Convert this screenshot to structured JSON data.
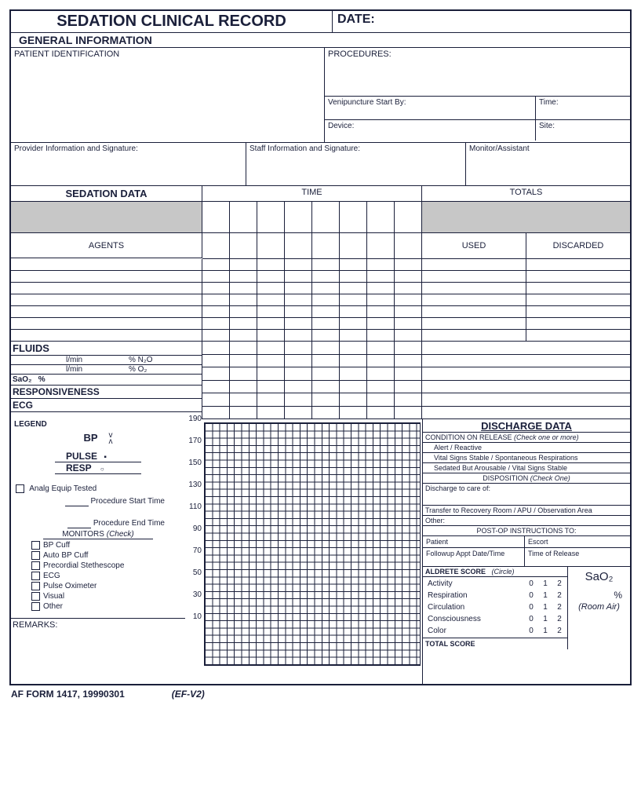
{
  "title": "SEDATION CLINICAL RECORD",
  "date_label": "DATE:",
  "general_info": {
    "heading": "GENERAL INFORMATION",
    "patient_id": "PATIENT IDENTIFICATION",
    "procedures": "PROCEDURES:",
    "venipuncture": "Venipuncture Start By:",
    "time": "Time:",
    "device": "Device:",
    "site": "Site:",
    "provider": "Provider Information and Signature:",
    "staff": "Staff Information and Signature:",
    "monitor": "Monitor/Assistant"
  },
  "sedation": {
    "heading": "SEDATION DATA",
    "time": "TIME",
    "totals": "TOTALS",
    "agents": "AGENTS",
    "used": "USED",
    "discarded": "DISCARDED",
    "agent_rows": 7
  },
  "fluids": {
    "heading": "FLUIDS",
    "lmin": "l/min",
    "n2o": "% N₂O",
    "o2": "% O₂",
    "sao2": "SaO₂",
    "pct": "%",
    "responsiveness": "RESPONSIVENESS",
    "ecg": "ECG"
  },
  "legend": {
    "heading": "LEGEND",
    "bp": "BP",
    "bp_sym_up": "v",
    "bp_sym_dn": "ʌ",
    "pulse": "PULSE",
    "pulse_sym": "▪",
    "resp": "RESP",
    "resp_sym": "○",
    "analg": "Analg Equip Tested",
    "proc_start": "Procedure Start Time",
    "proc_end": "Procedure End Time",
    "monitors_hdr": "MONITORS",
    "monitors_note": "(Check)",
    "monitors": [
      "BP Cuff",
      "Auto BP Cuff",
      "Precordial Stethescope",
      "ECG",
      "Pulse Oximeter",
      "Visual",
      "Other"
    ],
    "remarks": "REMARKS:"
  },
  "chart": {
    "yticks": [
      "190",
      "170",
      "150",
      "130",
      "110",
      "90",
      "70",
      "50",
      "30",
      "10"
    ]
  },
  "discharge": {
    "heading": "DISCHARGE DATA",
    "condition_hdr": "CONDITION ON RELEASE",
    "condition_note": "(Check one or more)",
    "conditions": [
      "Alert / Reactive",
      "Vital Signs Stable / Spontaneous Respirations",
      "Sedated But Arousable / Vital Signs Stable"
    ],
    "disposition_hdr": "DISPOSITION",
    "disposition_note": "(Check One)",
    "discharge_care": "Discharge to care of:",
    "transfer": "Transfer to Recovery Room / APU / Observation Area",
    "other": "Other:",
    "postop_hdr": "POST-OP INSTRUCTIONS TO:",
    "patient": "Patient",
    "escort": "Escort",
    "followup": "Followup Appt Date/Time",
    "time_release": "Time of Release"
  },
  "aldrete": {
    "heading": "ALDRETE SCORE",
    "note": "(Circle)",
    "rows": [
      "Activity",
      "Respiration",
      "Circulation",
      "Consciousness",
      "Color"
    ],
    "scores": [
      "0",
      "1",
      "2"
    ],
    "total": "TOTAL SCORE",
    "sao2": "SaO₂",
    "pct": "%",
    "room_air": "(Room Air)"
  },
  "footer": {
    "form_no": "AF FORM 1417, 19990301",
    "version": "(EF-V2)"
  },
  "colors": {
    "ink": "#1a1f3a",
    "grey": "#c7c7c7",
    "bg": "#ffffff"
  }
}
